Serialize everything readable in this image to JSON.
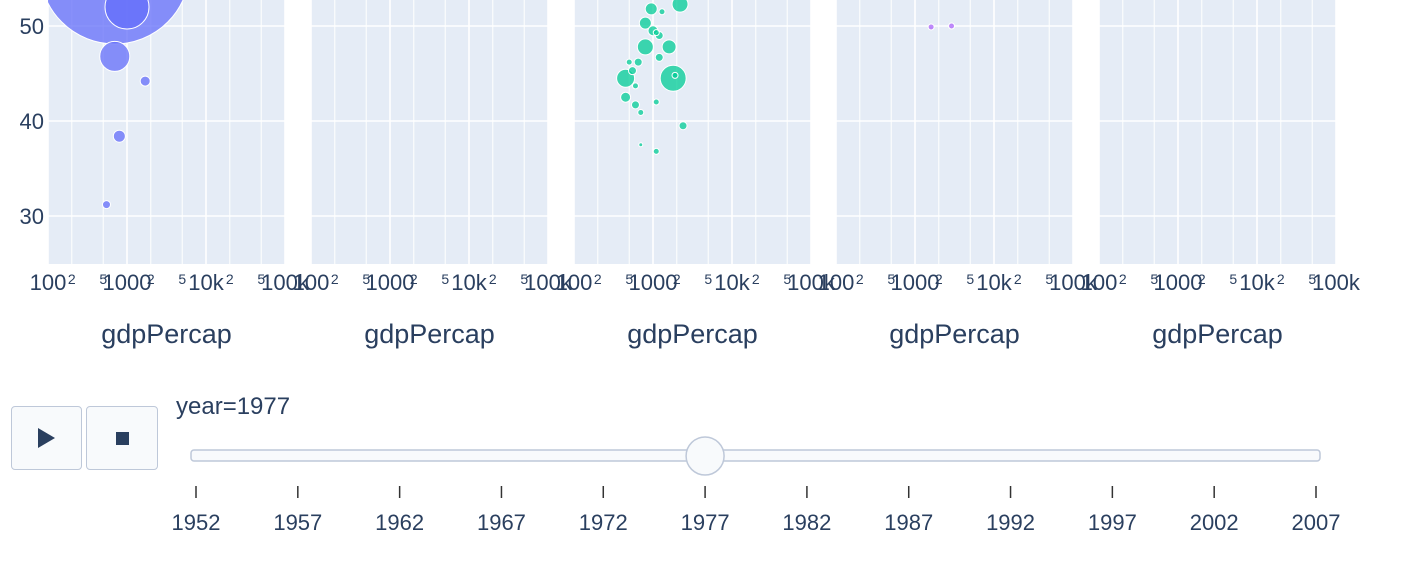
{
  "chart_data": {
    "type": "scatter",
    "subtype": "animated bubble chart, faceted by continent",
    "x_label": "gdpPercap",
    "x_scale": "log",
    "x_range": [
      100,
      100000
    ],
    "x_ticks_major": [
      "100",
      "1000",
      "10k",
      "100k"
    ],
    "x_ticks_minor": [
      "2",
      "5"
    ],
    "y_range_visible": [
      25,
      55
    ],
    "y_ticks": [
      30,
      40,
      50
    ],
    "grid": true,
    "panel_background": "#e5ecf6",
    "panels": [
      {
        "color": "#636efa",
        "points": [
          {
            "x": 700,
            "y": 56,
            "size": 75
          },
          {
            "x": 1000,
            "y": 52,
            "size": 22
          },
          {
            "x": 700,
            "y": 46.8,
            "size": 15
          },
          {
            "x": 1700,
            "y": 44.2,
            "size": 5
          },
          {
            "x": 800,
            "y": 38.4,
            "size": 6
          },
          {
            "x": 550,
            "y": 31.2,
            "size": 4
          }
        ]
      },
      {
        "color": "#ef553b",
        "points": []
      },
      {
        "color": "#00cc96",
        "points": [
          {
            "x": 1800,
            "y": 44.5,
            "size": 13
          },
          {
            "x": 450,
            "y": 44.5,
            "size": 9
          },
          {
            "x": 800,
            "y": 47.8,
            "size": 8
          },
          {
            "x": 1600,
            "y": 47.8,
            "size": 7
          },
          {
            "x": 950,
            "y": 51.8,
            "size": 6
          },
          {
            "x": 800,
            "y": 50.3,
            "size": 6
          },
          {
            "x": 2200,
            "y": 52.3,
            "size": 8
          },
          {
            "x": 1000,
            "y": 49.5,
            "size": 5
          },
          {
            "x": 450,
            "y": 42.5,
            "size": 5
          },
          {
            "x": 1200,
            "y": 46.7,
            "size": 4
          },
          {
            "x": 650,
            "y": 46.2,
            "size": 4
          },
          {
            "x": 1200,
            "y": 49.0,
            "size": 4
          },
          {
            "x": 2400,
            "y": 39.5,
            "size": 4
          },
          {
            "x": 1100,
            "y": 42.0,
            "size": 3
          },
          {
            "x": 600,
            "y": 41.7,
            "size": 4
          },
          {
            "x": 550,
            "y": 45.3,
            "size": 4
          },
          {
            "x": 700,
            "y": 40.9,
            "size": 3
          },
          {
            "x": 600,
            "y": 43.7,
            "size": 3
          },
          {
            "x": 1300,
            "y": 51.5,
            "size": 3
          },
          {
            "x": 500,
            "y": 46.2,
            "size": 3
          },
          {
            "x": 1100,
            "y": 36.8,
            "size": 3
          },
          {
            "x": 700,
            "y": 37.5,
            "size": 2
          },
          {
            "x": 1200,
            "y": 53.8,
            "size": 3
          },
          {
            "x": 1100,
            "y": 49.3,
            "size": 3
          },
          {
            "x": 2100,
            "y": 55.0,
            "size": 3
          },
          {
            "x": 1900,
            "y": 44.8,
            "size": 3
          }
        ]
      },
      {
        "color": "#ab63fa",
        "points": [
          {
            "x": 1600,
            "y": 49.9,
            "size": 3
          },
          {
            "x": 2900,
            "y": 50.0,
            "size": 3
          }
        ]
      },
      {
        "color": "#ffa15a",
        "points": []
      }
    ]
  },
  "slider": {
    "prefix": "year=",
    "current": "1977",
    "current_index": 5,
    "steps": [
      "1952",
      "1957",
      "1962",
      "1967",
      "1972",
      "1977",
      "1982",
      "1987",
      "1992",
      "1997",
      "2002",
      "2007"
    ]
  },
  "controls": {
    "play_icon": "play-icon",
    "stop_icon": "stop-icon"
  }
}
